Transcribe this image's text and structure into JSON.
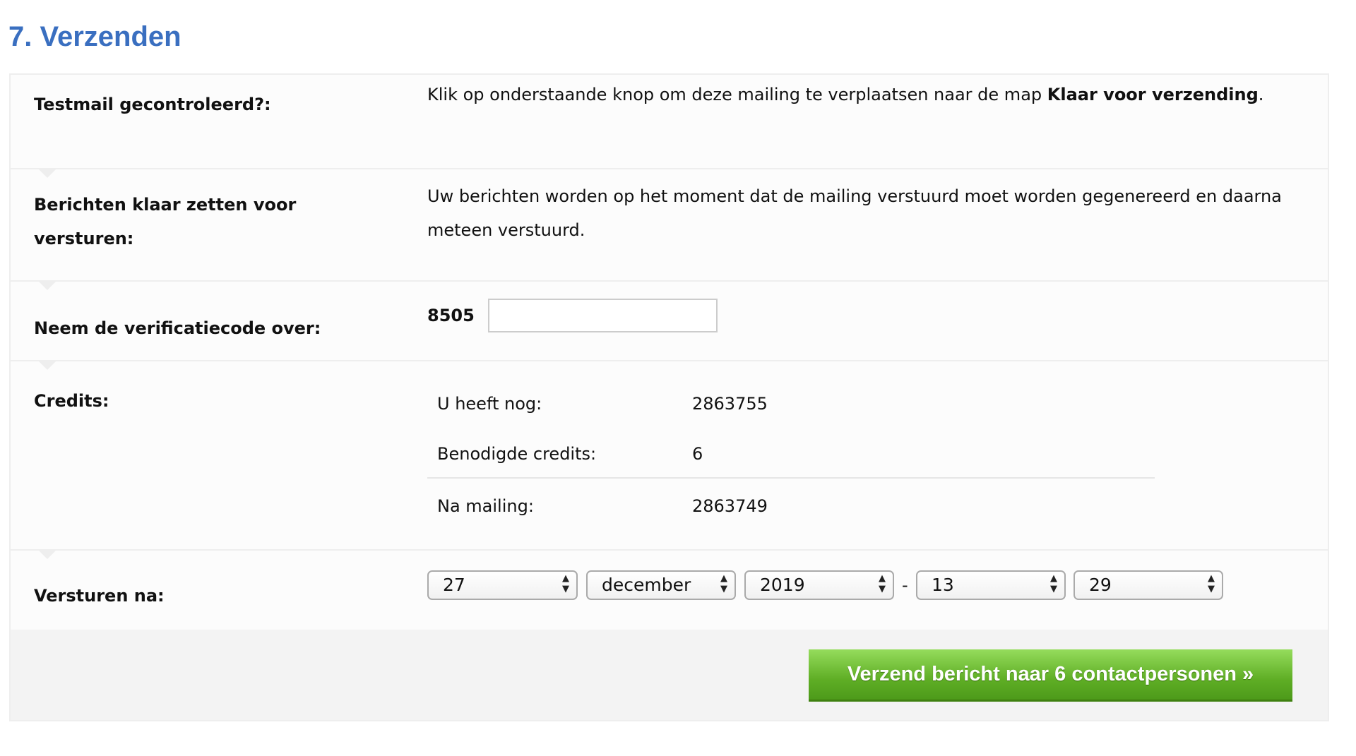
{
  "section_title": "7. Verzenden",
  "rows": {
    "testmail": {
      "label": "Testmail gecontroleerd?:",
      "text": "Klik op onderstaande knop om deze mailing te verplaatsen naar de map ",
      "bold": "Klaar voor verzending",
      "end": "."
    },
    "prepare": {
      "label": "Berichten klaar zetten voor versturen:",
      "text": "Uw berichten worden op het moment dat de mailing verstuurd moet worden gegenereerd en daarna meteen verstuurd."
    },
    "verification": {
      "label": "Neem de verificatiecode over:",
      "code": "8505",
      "value": ""
    },
    "credits": {
      "label": "Credits:",
      "items": [
        {
          "key": "U heeft nog:",
          "value": "2863755"
        },
        {
          "key": "Benodigde credits:",
          "value": "6"
        },
        {
          "key": "Na mailing:",
          "value": "2863749"
        }
      ]
    },
    "send_after": {
      "label": "Versturen na:",
      "day": "27",
      "month": "december",
      "year": "2019",
      "separator": "-",
      "hour": "13",
      "minute": "29"
    }
  },
  "submit_label": "Verzend bericht naar 6 contactpersonen »",
  "colors": {
    "title": "#3a6fc0",
    "button": "#5fae25"
  }
}
